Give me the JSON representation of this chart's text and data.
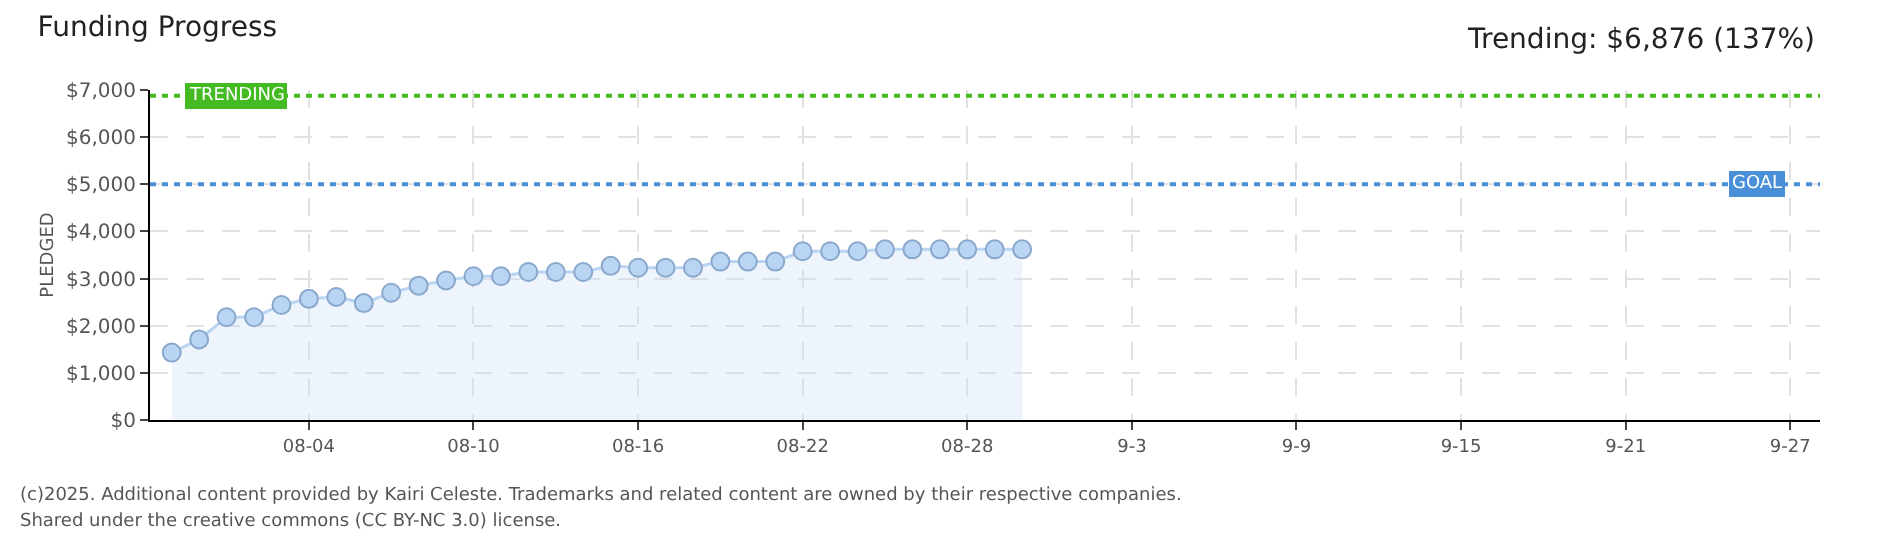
{
  "chart_data": {
    "type": "area",
    "title": "Funding Progress",
    "subtitle": "Trending: $6,876 (137%)",
    "ylabel": "PLEDGED",
    "x": [
      "--07-30",
      "--07-31",
      "--08-01",
      "--08-02",
      "--08-03",
      "--08-04",
      "--08-05",
      "--08-06",
      "--08-07",
      "--08-08",
      "--08-09",
      "--08-10",
      "--08-11",
      "--08-12",
      "--08-13",
      "--08-14",
      "--08-15",
      "--08-16",
      "--08-17",
      "--08-18",
      "--08-19",
      "--08-20",
      "--08-21",
      "--08-22",
      "--08-23",
      "--08-24",
      "--08-25",
      "--08-26",
      "--08-27",
      "--08-28",
      "--08-29",
      "--08-30"
    ],
    "series": [
      {
        "color": "#b9d5f3",
        "values": [
          1430,
          1710,
          2180,
          2180,
          2440,
          2570,
          2610,
          2480,
          2700,
          2850,
          2960,
          3050,
          3050,
          3140,
          3140,
          3140,
          3270,
          3230,
          3230,
          3230,
          3360,
          3360,
          3360,
          3580,
          3580,
          3580,
          3620,
          3620,
          3620,
          3620,
          3620,
          3620
        ]
      }
    ],
    "marker": "circle",
    "grid": true,
    "xlim": [
      "--07-29T05:00",
      "--09-28T02:00"
    ],
    "xticks": [
      {
        "value": "--08-04",
        "label": "08-04"
      },
      {
        "value": "--08-10",
        "label": "08-10"
      },
      {
        "value": "--08-16",
        "label": "08-16"
      },
      {
        "value": "--08-22",
        "label": "08-22"
      },
      {
        "value": "--08-28",
        "label": "08-28"
      },
      {
        "value": "--09-03",
        "label": "9-3"
      },
      {
        "value": "--09-09",
        "label": "9-9"
      },
      {
        "value": "--09-15",
        "label": "9-15"
      },
      {
        "value": "--09-21",
        "label": "9-21"
      },
      {
        "value": "--09-27",
        "label": "9-27"
      }
    ],
    "ylim": [
      0,
      7000
    ],
    "yticks": [
      {
        "value": 0,
        "label": "$0"
      },
      {
        "value": 1000,
        "label": "$1,000"
      },
      {
        "value": 2000,
        "label": "$2,000"
      },
      {
        "value": 3000,
        "label": "$3,000"
      },
      {
        "value": 4000,
        "label": "$4,000"
      },
      {
        "value": 5000,
        "label": "$5,000"
      },
      {
        "value": 6000,
        "label": "$6,000"
      },
      {
        "value": 7000,
        "label": "$7,000"
      }
    ],
    "ref_lines": [
      {
        "axis": "y",
        "value": 6876,
        "label": "TRENDING",
        "color": "#44bb22",
        "line_style": "dotted"
      },
      {
        "axis": "y",
        "value": 5000,
        "label": "GOAL",
        "color": "#4a90d9",
        "line_style": "dotted"
      }
    ],
    "annotations": [
      "(c)2025. Additional content provided by Kairi Celeste. Trademarks and related content are owned by their respective companies.",
      "Shared under the creative commons (CC BY-NC 3.0) license."
    ]
  }
}
